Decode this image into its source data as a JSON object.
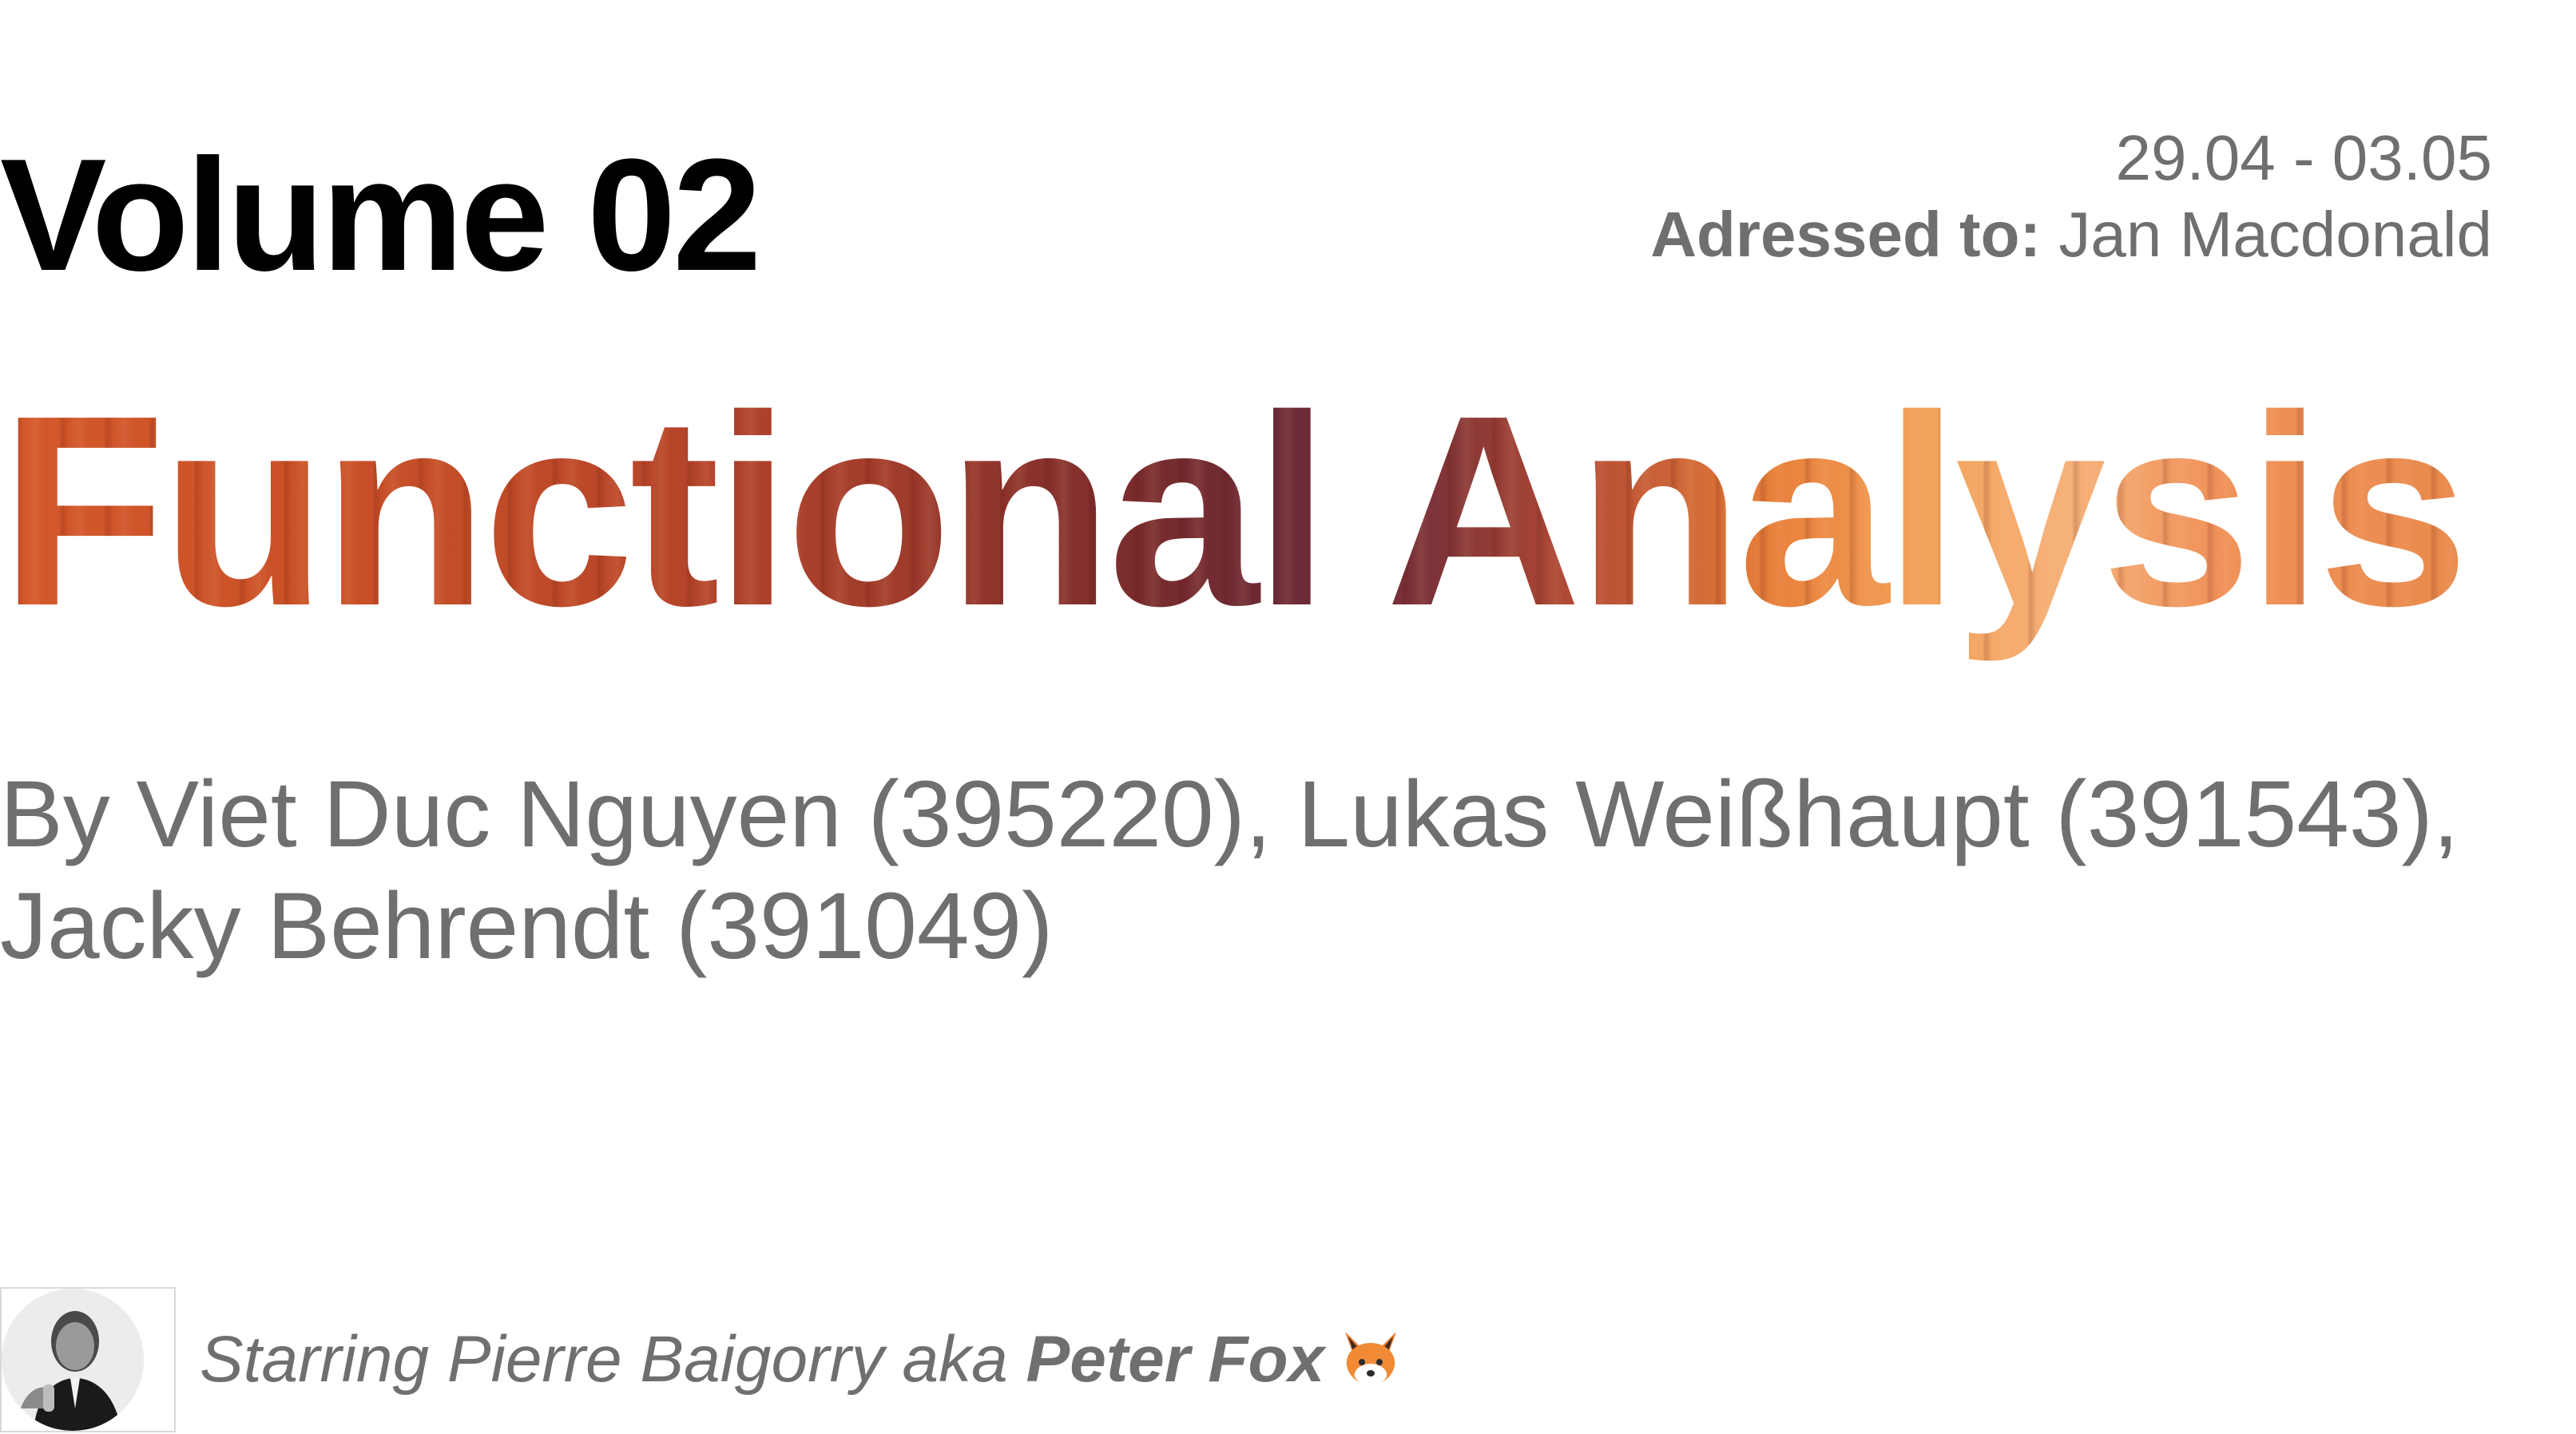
{
  "header": {
    "volume": "Volume 02",
    "date_range": "29.04 - 03.05",
    "addressed_label": "Adressed to:",
    "addressed_name": " Jan Macdonald"
  },
  "title": "Functional Analysis",
  "authors": {
    "line1": "By Viet Duc Nguyen (395220), Lukas Weißhaupt (391543),",
    "line2": "Jacky Behrendt (391049)"
  },
  "footer": {
    "prefix": "Starring Pierre Baigorry aka ",
    "name": "Peter Fox",
    "icon": "fox-icon",
    "avatar": "portrait-photo"
  },
  "colors": {
    "text_dark": "#000000",
    "text_gray": "#6f6f6f",
    "title_wood_orange": "#d4582b",
    "title_wood_dark": "#6a2a36",
    "title_wood_light": "#f6b27a"
  }
}
